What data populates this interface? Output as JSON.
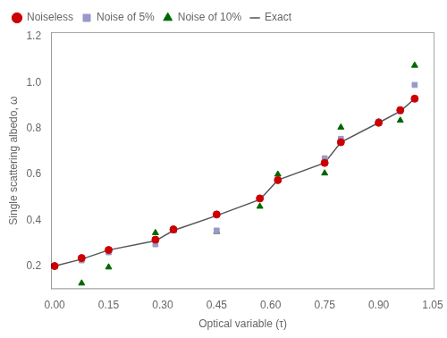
{
  "chart_data": {
    "type": "line",
    "xlabel": "Optical variable (τ)",
    "ylabel": "Single scattering albedo, ω",
    "x": [
      0.0,
      0.075,
      0.15,
      0.28,
      0.33,
      0.45,
      0.57,
      0.62,
      0.75,
      0.795,
      0.9,
      0.96,
      1.0
    ],
    "series": [
      {
        "name": "Exact",
        "type": "line",
        "line_style": "solid",
        "color": "#555555",
        "values": [
          0.2,
          0.23,
          0.27,
          0.31,
          0.355,
          0.42,
          0.49,
          0.575,
          0.65,
          0.74,
          0.825,
          0.875,
          0.93
        ]
      },
      {
        "name": "Noiseless",
        "type": "scatter",
        "marker": "circle",
        "line_style": "none",
        "color": "#cc0000",
        "values": [
          0.2,
          0.235,
          0.27,
          0.315,
          0.36,
          0.425,
          0.495,
          0.575,
          0.65,
          0.74,
          0.825,
          0.88,
          0.93
        ]
      },
      {
        "name": "Noise of 5%",
        "type": "scatter",
        "marker": "square",
        "line_style": "none",
        "color": "#9999cc",
        "values": [
          0.2,
          0.225,
          0.26,
          0.295,
          0.355,
          0.355,
          0.495,
          0.575,
          0.67,
          0.755,
          0.83,
          0.875,
          0.99
        ]
      },
      {
        "name": "Noise of 10%",
        "type": "scatter",
        "marker": "triangle",
        "line_style": "none",
        "color": "#006600",
        "values": [
          0.2,
          0.125,
          0.195,
          0.345,
          0.355,
          0.35,
          0.46,
          0.6,
          0.605,
          0.805,
          0.83,
          0.835,
          1.075
        ]
      }
    ],
    "xlim": [
      -0.01,
      1.055
    ],
    "ylim": [
      0.1,
      1.22
    ],
    "xticks": [
      {
        "value": 0.0,
        "label": "0.00"
      },
      0.15,
      {
        "value": 0.3,
        "label": "0.30"
      },
      0.45,
      {
        "value": 0.6,
        "label": "0.60"
      },
      0.75,
      {
        "value": 0.9,
        "label": "0.90"
      },
      1.05
    ],
    "yticks": [
      0.2,
      0.4,
      0.6,
      0.8,
      {
        "value": 1.0,
        "label": "1.0"
      },
      1.2
    ],
    "grid": false,
    "legend": "upper left"
  }
}
